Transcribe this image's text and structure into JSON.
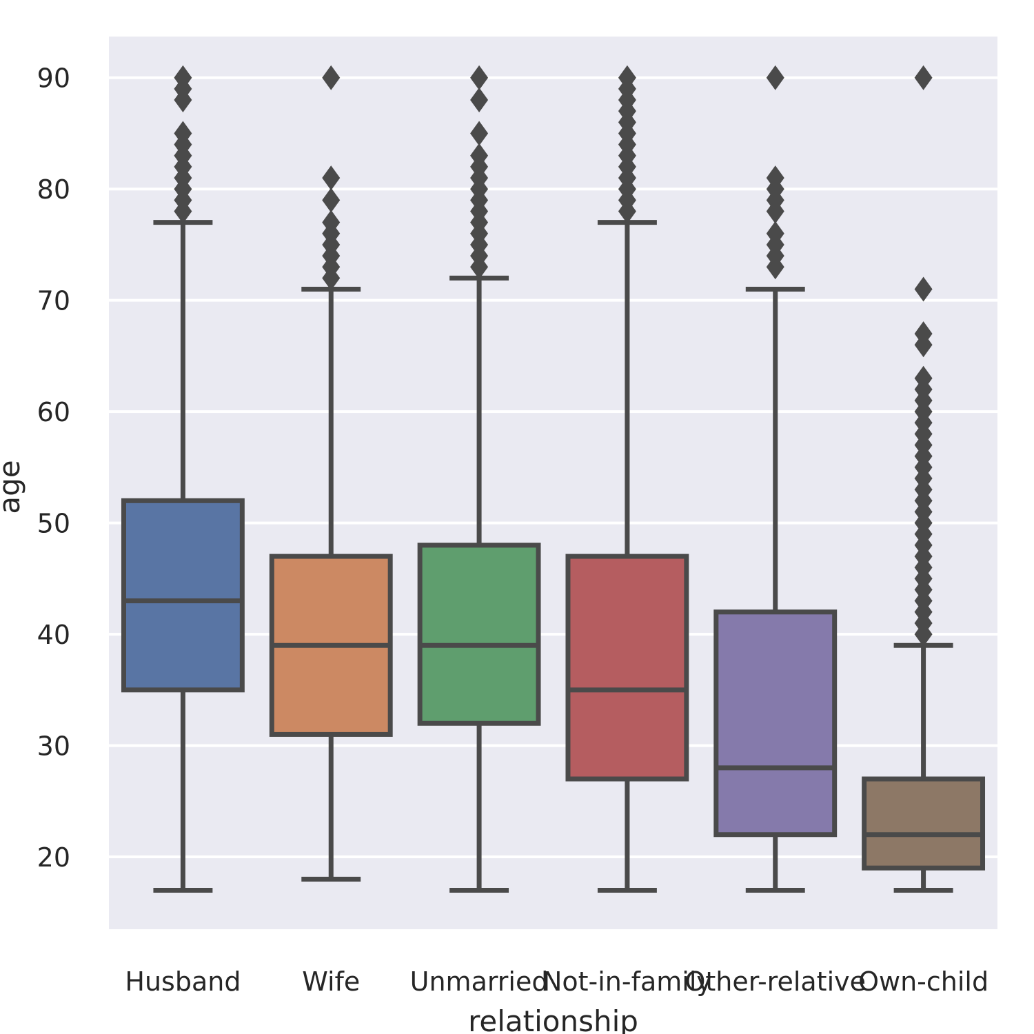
{
  "chart_data": {
    "type": "box",
    "xlabel": "relationship",
    "ylabel": "age",
    "ylim": [
      13.5,
      93.7
    ],
    "yticks": [
      20,
      30,
      40,
      50,
      60,
      70,
      80,
      90
    ],
    "grid": true,
    "legend": "none",
    "background": "#eaeaf2",
    "line_color": "#4a4a4a",
    "categories": [
      "Husband",
      "Wife",
      "Unmarried",
      "Not-in-family",
      "Other-relative",
      "Own-child"
    ],
    "boxes": [
      {
        "category": "Husband",
        "color": "#5975a4",
        "whisker_low": 17,
        "q1": 35,
        "median": 43,
        "q3": 52,
        "whisker_high": 77,
        "outliers": [
          78,
          79,
          80,
          81,
          82,
          83,
          84,
          85,
          88,
          89,
          90
        ]
      },
      {
        "category": "Wife",
        "color": "#cc8963",
        "whisker_low": 18,
        "q1": 31,
        "median": 39,
        "q3": 47,
        "whisker_high": 71,
        "outliers": [
          72,
          73,
          74,
          75,
          76,
          77,
          79,
          81,
          90
        ]
      },
      {
        "category": "Unmarried",
        "color": "#5f9e6e",
        "whisker_low": 17,
        "q1": 32,
        "median": 39,
        "q3": 48,
        "whisker_high": 72,
        "outliers": [
          73,
          74,
          75,
          76,
          77,
          78,
          79,
          80,
          81,
          82,
          83,
          85,
          88,
          90
        ]
      },
      {
        "category": "Not-in-family",
        "color": "#b55d60",
        "whisker_low": 17,
        "q1": 27,
        "median": 35,
        "q3": 47,
        "whisker_high": 77,
        "outliers": [
          78,
          79,
          80,
          81,
          82,
          83,
          84,
          85,
          86,
          87,
          88,
          89,
          90
        ]
      },
      {
        "category": "Other-relative",
        "color": "#857aab",
        "whisker_low": 17,
        "q1": 22,
        "median": 28,
        "q3": 42,
        "whisker_high": 71,
        "outliers": [
          73,
          74,
          75,
          76,
          78,
          79,
          80,
          81,
          90
        ]
      },
      {
        "category": "Own-child",
        "color": "#8d7866",
        "whisker_low": 17,
        "q1": 19,
        "median": 22,
        "q3": 27,
        "whisker_high": 39,
        "outliers": [
          40,
          41,
          42,
          43,
          44,
          45,
          46,
          47,
          48,
          49,
          50,
          51,
          52,
          53,
          54,
          55,
          56,
          57,
          58,
          59,
          60,
          61,
          62,
          63,
          66,
          67,
          71,
          90
        ]
      }
    ]
  }
}
